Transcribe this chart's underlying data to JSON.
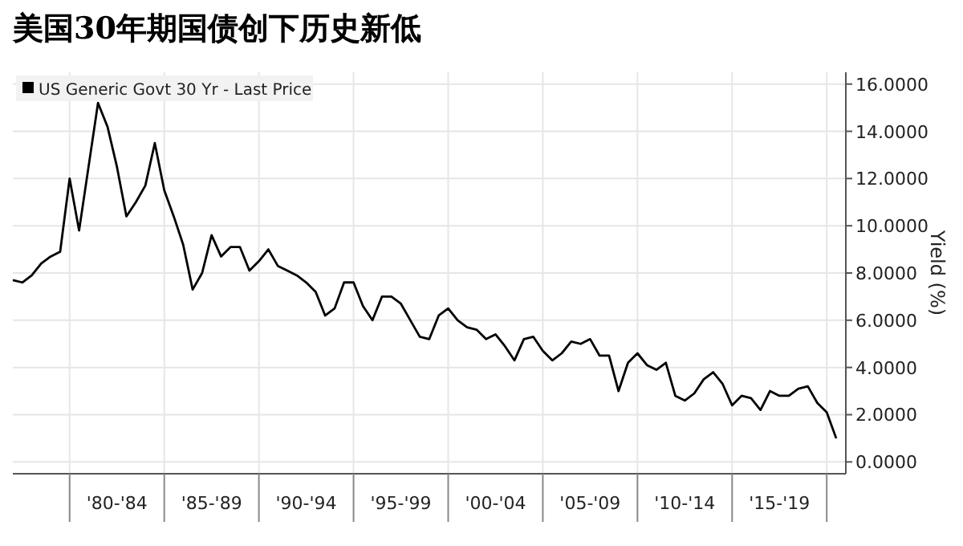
{
  "chart_data": {
    "type": "line",
    "title": "美国30年期国债创下历史新低",
    "ylabel": "Yield (%)",
    "categories": [
      null,
      null,
      null,
      null,
      null,
      null,
      null,
      null,
      null,
      null,
      null,
      "'80-'84",
      null,
      null,
      null,
      null,
      null,
      null,
      null,
      null,
      null,
      "'85-'89",
      null,
      null,
      null,
      null,
      null,
      null,
      null,
      null,
      null,
      "'90-'94",
      null,
      null,
      null,
      null,
      null,
      null,
      null,
      null,
      null,
      "'95-'99",
      null,
      null,
      null,
      null,
      null,
      null,
      null,
      null,
      null,
      "'00-'04",
      null,
      null,
      null,
      null,
      null,
      null,
      null,
      null,
      null,
      "'05-'09",
      null,
      null,
      null,
      null,
      null,
      null,
      null,
      null,
      null,
      "'10-'14",
      null,
      null,
      null,
      null,
      null,
      null,
      null,
      null,
      null,
      "'15-'19",
      null,
      null,
      null,
      null,
      null,
      null
    ],
    "series": [
      {
        "name": "US Generic Govt 30 Yr - Last Price",
        "color": "#000000",
        "values": [
          7.7,
          7.6,
          7.9,
          8.4,
          8.7,
          8.9,
          12.0,
          9.8,
          12.5,
          15.2,
          14.2,
          12.5,
          10.4,
          11.0,
          11.7,
          13.5,
          11.5,
          10.4,
          9.2,
          7.3,
          8.0,
          9.6,
          8.7,
          9.1,
          9.1,
          8.1,
          8.5,
          9.0,
          8.3,
          8.1,
          7.9,
          7.6,
          7.2,
          6.2,
          6.5,
          7.6,
          7.6,
          6.6,
          6.0,
          7.0,
          7.0,
          6.7,
          6.0,
          5.3,
          5.2,
          6.2,
          6.5,
          6.0,
          5.7,
          5.6,
          5.2,
          5.4,
          4.9,
          4.3,
          5.2,
          5.3,
          4.7,
          4.3,
          4.6,
          5.1,
          5.0,
          5.2,
          4.5,
          4.5,
          3.0,
          4.2,
          4.6,
          4.1,
          3.9,
          4.2,
          2.8,
          2.6,
          2.9,
          3.5,
          3.8,
          3.3,
          2.4,
          2.8,
          2.7,
          2.2,
          3.0,
          2.8,
          2.8,
          3.1,
          3.2,
          2.5,
          2.1,
          1.0
        ]
      }
    ],
    "ylim": [
      -0.5,
      16.5
    ],
    "yticks": [
      {
        "value": 0,
        "label": "0.0000"
      },
      {
        "value": 2,
        "label": "2.0000"
      },
      {
        "value": 4,
        "label": "4.0000"
      },
      {
        "value": 6,
        "label": "6.0000"
      },
      {
        "value": 8,
        "label": "8.0000"
      },
      {
        "value": 10,
        "label": "10.0000"
      },
      {
        "value": 12,
        "label": "12.0000"
      },
      {
        "value": 14,
        "label": "14.0000"
      },
      {
        "value": 16,
        "label": "16.0000"
      }
    ],
    "grid": true,
    "legend": "top left",
    "marker": "none",
    "line_style": "solid"
  }
}
